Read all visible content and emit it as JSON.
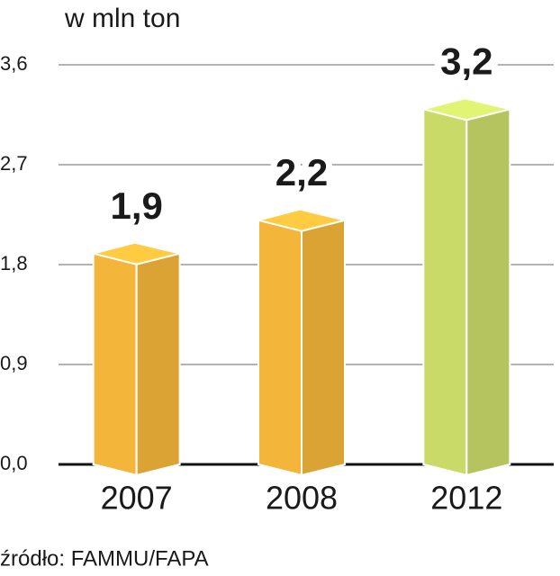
{
  "chart_data": {
    "type": "bar3d",
    "title": "w mln ton",
    "source": "źródło: FAMMU/FAPA",
    "categories": [
      "2007",
      "2008",
      "2012"
    ],
    "values": [
      1.9,
      2.2,
      3.2
    ],
    "value_labels": [
      "1,9",
      "2,2",
      "3,2"
    ],
    "colors": [
      "#f3b53a",
      "#f3b53a",
      "#c9da68"
    ],
    "ylim": [
      0,
      3.6
    ],
    "yticks": [
      {
        "value": 0,
        "label": "0,0"
      },
      {
        "value": 0.9,
        "label": "0,9"
      },
      {
        "value": 1.8,
        "label": "1,8"
      },
      {
        "value": 2.7,
        "label": "2,7"
      },
      {
        "value": 3.6,
        "label": "3,6"
      }
    ],
    "grid": true
  }
}
